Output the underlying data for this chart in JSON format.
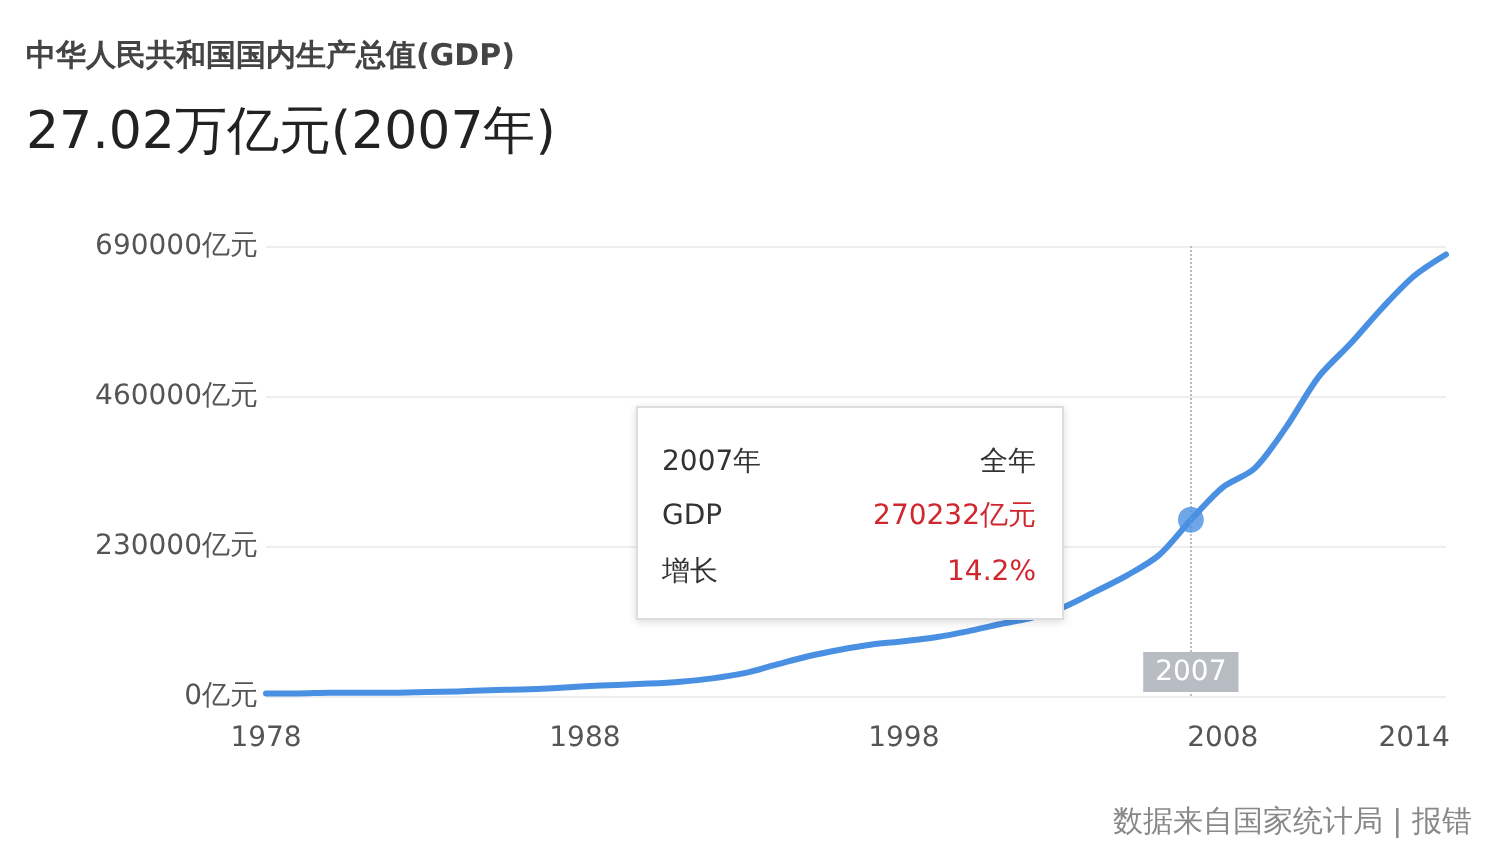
{
  "chart_data": {
    "type": "line",
    "title": "中华人民共和国国内生产总值(GDP)",
    "subtitle": "27.02万亿元(2007年)",
    "x": [
      1978,
      1979,
      1980,
      1981,
      1982,
      1983,
      1984,
      1985,
      1986,
      1987,
      1988,
      1989,
      1990,
      1991,
      1992,
      1993,
      1994,
      1995,
      1996,
      1997,
      1998,
      1999,
      2000,
      2001,
      2002,
      2003,
      2004,
      2005,
      2006,
      2007,
      2008,
      2009,
      2010,
      2011,
      2012,
      2013,
      2014,
      2015
    ],
    "series": [
      {
        "color": "#4a90e2",
        "values": [
          4000,
          4000,
          5000,
          5000,
          5000,
          6000,
          7000,
          9000,
          10000,
          12000,
          15000,
          17000,
          19000,
          22000,
          27000,
          35000,
          48000,
          61000,
          71000,
          79000,
          84000,
          90000,
          99000,
          110000,
          120000,
          136000,
          160000,
          185000,
          216000,
          270000,
          320000,
          349000,
          413000,
          489000,
          540000,
          595000,
          644000,
          677000
        ]
      },
      {
        "type": "scatter",
        "marker": "circle",
        "color": "#4a90e2",
        "x": [
          2007
        ],
        "values": [
          270232
        ]
      }
    ],
    "xlim": [
      1978,
      2015
    ],
    "xticks": [
      1978,
      1988,
      1998,
      2008,
      2014
    ],
    "ylim": [
      0,
      690000
    ],
    "yticks": [
      {
        "value": 0,
        "label": "0亿元"
      },
      {
        "value": 230000,
        "label": "230000亿元"
      },
      {
        "value": 460000,
        "label": "460000亿元"
      },
      {
        "value": 690000,
        "label": "690000亿元"
      }
    ],
    "grid": "y",
    "marker": "none",
    "line_style": "solid",
    "ref_lines": [
      {
        "axis": "x",
        "value": 2007,
        "label": "2007",
        "color": "#b8bcc3",
        "line_style": "dotted"
      }
    ],
    "annotations": [
      "2007年",
      "全年",
      "GDP",
      "270232亿元",
      "增长",
      "14.2%",
      "数据来自国家统计局 | 报错"
    ]
  }
}
